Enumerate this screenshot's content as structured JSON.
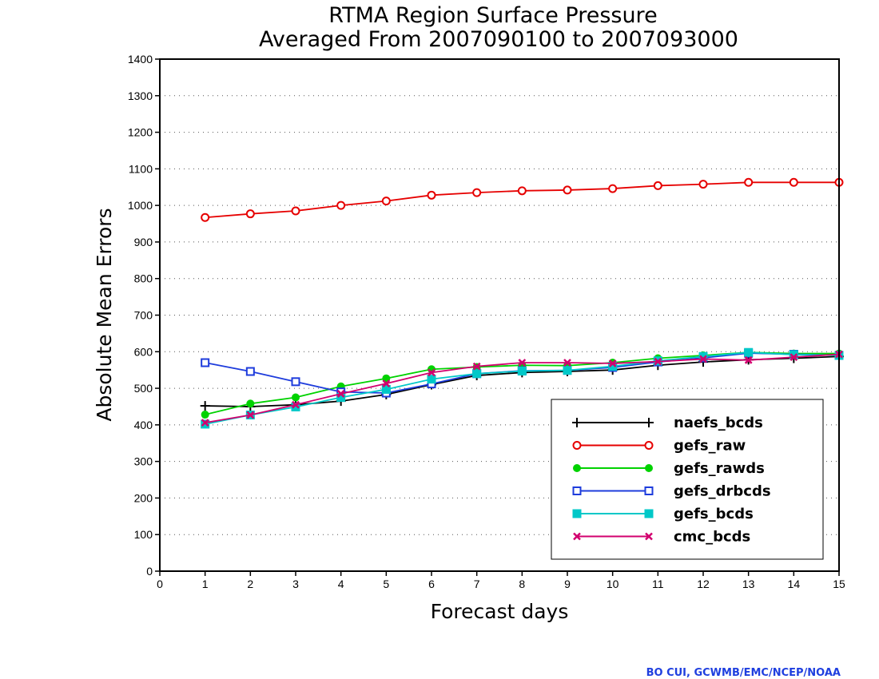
{
  "chart_data": {
    "type": "line",
    "title": "RTMA Region Surface Pressure",
    "subtitle": "Averaged From 2007090100 to 2007093000",
    "xlabel": "Forecast days",
    "ylabel": "Absolute Mean Errors",
    "xlim": [
      0,
      15
    ],
    "ylim": [
      0,
      1400
    ],
    "x_ticks": [
      0,
      1,
      2,
      3,
      4,
      5,
      6,
      7,
      8,
      9,
      10,
      11,
      12,
      13,
      14,
      15
    ],
    "y_ticks": [
      0,
      100,
      200,
      300,
      400,
      500,
      600,
      700,
      800,
      900,
      1000,
      1100,
      1200,
      1300,
      1400
    ],
    "grid": "horizontal-dotted",
    "legend_position": "bottom-right",
    "x": [
      1,
      2,
      3,
      4,
      5,
      6,
      7,
      8,
      9,
      10,
      11,
      12,
      13,
      14,
      15
    ],
    "series": [
      {
        "name": "naefs_bcds",
        "color": "#000000",
        "marker": "plus",
        "values": [
          452,
          450,
          455,
          465,
          483,
          510,
          535,
          543,
          546,
          550,
          563,
          572,
          578,
          582,
          587
        ]
      },
      {
        "name": "gefs_raw",
        "color": "#e60000",
        "marker": "circle-open",
        "values": [
          967,
          977,
          985,
          1000,
          1012,
          1028,
          1035,
          1040,
          1042,
          1046,
          1054,
          1058,
          1063,
          1063,
          1063
        ]
      },
      {
        "name": "gefs_rawds",
        "color": "#00d200",
        "marker": "circle-filled",
        "values": [
          428,
          458,
          475,
          505,
          527,
          552,
          558,
          563,
          562,
          570,
          582,
          590,
          598,
          595,
          595
        ]
      },
      {
        "name": "gefs_drbcds",
        "color": "#1e3cdc",
        "marker": "square-open",
        "values": [
          570,
          546,
          518,
          490,
          487,
          512,
          540,
          548,
          549,
          557,
          572,
          583,
          596,
          593,
          590
        ]
      },
      {
        "name": "gefs_bcds",
        "color": "#00c8c8",
        "marker": "square-filled",
        "values": [
          402,
          427,
          449,
          475,
          497,
          525,
          540,
          547,
          549,
          560,
          575,
          587,
          598,
          592,
          590
        ]
      },
      {
        "name": "cmc_bcds",
        "color": "#d2006e",
        "marker": "cross",
        "values": [
          406,
          427,
          455,
          485,
          513,
          543,
          560,
          570,
          570,
          568,
          573,
          580,
          577,
          585,
          593
        ]
      }
    ]
  },
  "credit": "BO CUI, GCWMB/EMC/NCEP/NOAA"
}
